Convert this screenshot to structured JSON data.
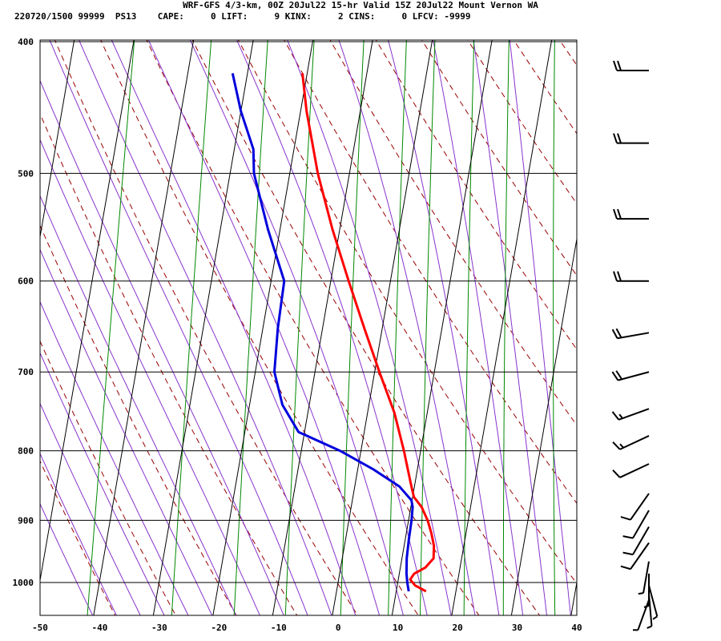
{
  "header": {
    "title": "WRF-GFS 4/3-km, 00Z 20Jul22 15-hr Valid 15Z 20Jul22 Mount Vernon WA",
    "info": "220720/1500 99999  PS13    CAPE:     0 LIFT:     9 KINX:     2 CINS:     0 LFCV: -9999"
  },
  "colors": {
    "temperature": "#ff0000",
    "dewpoint": "#0000dd",
    "dry_adiabat": "#990000",
    "moist_adiabat": "#8833cc",
    "mixing_ratio": "#008800",
    "grid": "#000000",
    "wind_barb": "#000000"
  },
  "chart_data": {
    "type": "line",
    "chart_kind": "skew-T log-p sounding",
    "x_ticks": [
      "-50",
      "-40",
      "-30",
      "-20",
      "-10",
      "0",
      "10",
      "20",
      "30",
      "40"
    ],
    "x_tick_values": [
      -50,
      -40,
      -30,
      -20,
      -10,
      0,
      10,
      20,
      30,
      40
    ],
    "y_ticks": [
      "400",
      "500",
      "600",
      "700",
      "800",
      "900",
      "1000"
    ],
    "y_tick_values": [
      400,
      500,
      600,
      700,
      800,
      900,
      1000
    ],
    "xlim": [
      -50,
      40
    ],
    "ylim": [
      1040,
      400
    ],
    "y_scale": "log (pressure, hPa)",
    "series": [
      {
        "key": "temperature",
        "points": [
          [
            1015,
            15.0
          ],
          [
            1005,
            13.0
          ],
          [
            995,
            12.0
          ],
          [
            985,
            12.5
          ],
          [
            975,
            14.2
          ],
          [
            960,
            15.3
          ],
          [
            940,
            15.0
          ],
          [
            920,
            14.2
          ],
          [
            900,
            13.2
          ],
          [
            880,
            11.8
          ],
          [
            865,
            10.2
          ],
          [
            850,
            9.5
          ],
          [
            800,
            7.2
          ],
          [
            750,
            4.5
          ],
          [
            700,
            0.8
          ],
          [
            650,
            -3.0
          ],
          [
            600,
            -7.0
          ],
          [
            550,
            -11.2
          ],
          [
            500,
            -15.3
          ],
          [
            450,
            -19.0
          ],
          [
            422,
            -20.8
          ]
        ]
      },
      {
        "key": "dewpoint",
        "points": [
          [
            1015,
            12.1
          ],
          [
            1000,
            11.6
          ],
          [
            985,
            11.2
          ],
          [
            960,
            10.8
          ],
          [
            930,
            10.6
          ],
          [
            900,
            10.5
          ],
          [
            880,
            10.3
          ],
          [
            870,
            9.9
          ],
          [
            850,
            7.5
          ],
          [
            825,
            2.5
          ],
          [
            800,
            -3.5
          ],
          [
            775,
            -11.0
          ],
          [
            740,
            -14.5
          ],
          [
            700,
            -16.8
          ],
          [
            650,
            -17.5
          ],
          [
            600,
            -17.8
          ],
          [
            550,
            -22.0
          ],
          [
            500,
            -26.0
          ],
          [
            480,
            -26.8
          ],
          [
            450,
            -30.0
          ],
          [
            422,
            -32.5
          ]
        ]
      }
    ],
    "wind_levels": [
      {
        "p": 420,
        "dir": 270,
        "spd": 20
      },
      {
        "p": 475,
        "dir": 270,
        "spd": 20
      },
      {
        "p": 540,
        "dir": 270,
        "spd": 20
      },
      {
        "p": 600,
        "dir": 270,
        "spd": 20
      },
      {
        "p": 655,
        "dir": 260,
        "spd": 20
      },
      {
        "p": 700,
        "dir": 255,
        "spd": 20
      },
      {
        "p": 745,
        "dir": 250,
        "spd": 15
      },
      {
        "p": 780,
        "dir": 245,
        "spd": 15
      },
      {
        "p": 818,
        "dir": 245,
        "spd": 10
      },
      {
        "p": 860,
        "dir": 215,
        "spd": 10
      },
      {
        "p": 885,
        "dir": 210,
        "spd": 10
      },
      {
        "p": 910,
        "dir": 210,
        "spd": 10
      },
      {
        "p": 935,
        "dir": 215,
        "spd": 10
      },
      {
        "p": 965,
        "dir": 190,
        "spd": 5
      },
      {
        "p": 985,
        "dir": 180,
        "spd": 5
      },
      {
        "p": 1005,
        "dir": 165,
        "spd": 5
      },
      {
        "p": 1020,
        "dir": 175,
        "spd": 5
      },
      {
        "p": 1030,
        "dir": 200,
        "spd": 5
      }
    ]
  }
}
